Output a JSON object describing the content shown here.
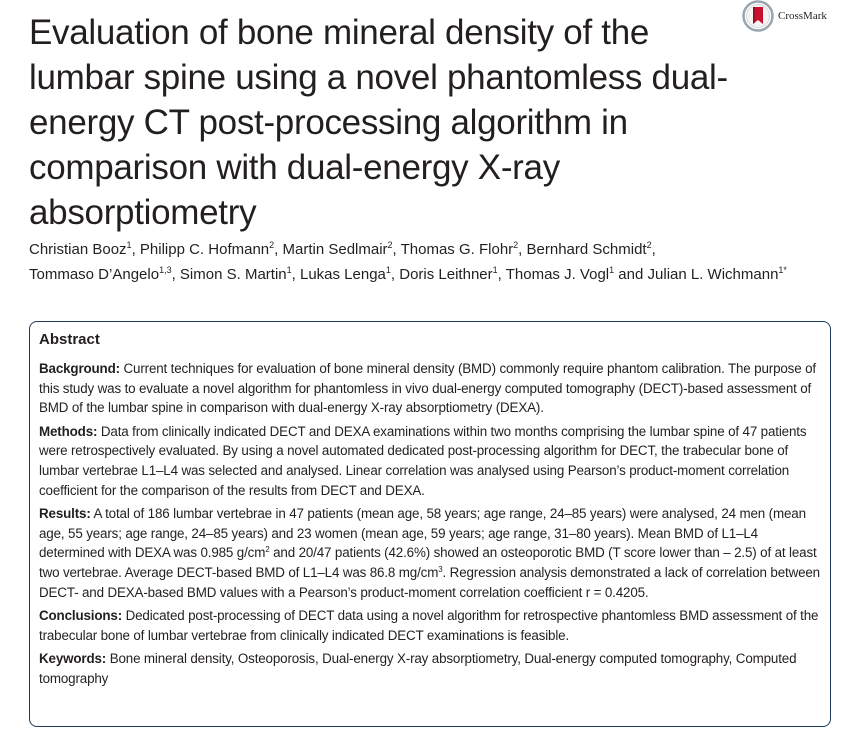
{
  "title": "Evaluation of bone mineral density of the lumbar spine using a novel phantomless dual-energy CT post-processing algorithm in comparison with dual-energy X-ray absorptiometry",
  "crossmark": {
    "label": "CrossMark",
    "icon": "crossmark-icon"
  },
  "authors": [
    {
      "name": "Christian Booz",
      "aff": "1",
      "sep": ", "
    },
    {
      "name": "Philipp C. Hofmann",
      "aff": "2",
      "sep": ", "
    },
    {
      "name": "Martin Sedlmair",
      "aff": "2",
      "sep": ", "
    },
    {
      "name": "Thomas G. Flohr",
      "aff": "2",
      "sep": ", "
    },
    {
      "name": "Bernhard Schmidt",
      "aff": "2",
      "sep": ","
    },
    {
      "name": "Tommaso D’Angelo",
      "aff": "1,3",
      "sep": ", "
    },
    {
      "name": "Simon S. Martin",
      "aff": "1",
      "sep": ", "
    },
    {
      "name": "Lukas Lenga",
      "aff": "1",
      "sep": ", "
    },
    {
      "name": "Doris Leithner",
      "aff": "1",
      "sep": ", "
    },
    {
      "name": "Thomas J. Vogl",
      "aff": "1",
      "sep": " and "
    },
    {
      "name": "Julian L. Wichmann",
      "aff": "1*",
      "sep": ""
    }
  ],
  "abstract": {
    "heading": "Abstract",
    "background": {
      "label": "Background:",
      "text": "Current techniques for evaluation of bone mineral density (BMD) commonly require phantom calibration. The purpose of this study was to evaluate a novel algorithm for phantomless in vivo dual-energy computed tomography (DECT)-based assessment of BMD of the lumbar spine in comparison with dual-energy X-ray absorptiometry (DEXA)."
    },
    "methods": {
      "label": "Methods:",
      "text": "Data from clinically indicated DECT and DEXA examinations within two months comprising the lumbar spine of 47 patients were retrospectively evaluated. By using a novel automated dedicated post-processing algorithm for DECT, the trabecular bone of lumbar vertebrae L1–L4 was selected and analysed. Linear correlation was analysed using Pearson’s product-moment correlation coefficient for the comparison of the results from DECT and DEXA."
    },
    "results": {
      "label": "Results:",
      "text_1": "A total of 186 lumbar vertebrae in 47 patients (mean age, 58 years; age range, 24–85 years) were analysed, 24 men (mean age, 55 years; age range, 24–85 years) and 23 women (mean age, 59 years; age range, 31–80 years). Mean BMD of L1–L4 determined with DEXA was 0.985 g/cm",
      "sup_1": "2",
      "text_2": " and 20/47 patients (42.6%) showed an osteoporotic BMD (T score lower than – 2.5) of at least two vertebrae. Average DECT-based BMD of L1–L4 was 86.8 mg/cm",
      "sup_2": "3",
      "text_3": ". Regression analysis demonstrated a lack of correlation between DECT- and DEXA-based BMD values with a Pearson’s product-moment correlation coefficient r = 0.4205."
    },
    "conclusions": {
      "label": "Conclusions:",
      "text": "Dedicated post-processing of DECT data using a novel algorithm for retrospective phantomless BMD assessment of the trabecular bone of lumbar vertebrae from clinically indicated DECT examinations is feasible."
    },
    "keywords": {
      "label": "Keywords:",
      "text": "Bone mineral density, Osteoporosis, Dual-energy X-ray absorptiometry, Dual-energy computed tomography, Computed tomography"
    }
  },
  "colors": {
    "text": "#231f20",
    "box_border": "#1f3a5a",
    "crossmark_red": "#c8102e",
    "crossmark_ring": "#9aa5ad"
  }
}
